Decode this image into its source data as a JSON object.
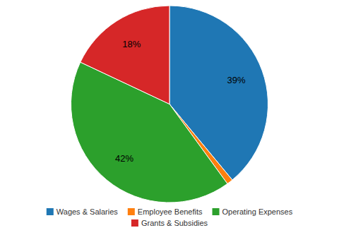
{
  "chart_data": {
    "type": "pie",
    "categories": [
      "Wages & Salaries",
      "Employee Benefits",
      "Operating Expenses",
      "Grants & Subsidies"
    ],
    "values": [
      39,
      1,
      42,
      18
    ],
    "value_labels": [
      "39%",
      null,
      "42%",
      "18%"
    ],
    "data_labels": true,
    "legend": "bottom"
  }
}
